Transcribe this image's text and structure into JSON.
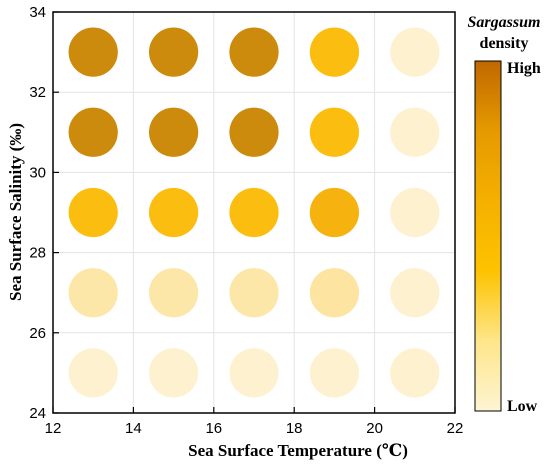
{
  "chart_data": {
    "type": "scatter",
    "xlabel": "Sea Surface Temperature (℃)",
    "ylabel": "Sea Surface Salinity (‰)",
    "xlim": [
      12,
      22
    ],
    "ylim": [
      24,
      34
    ],
    "xticks": [
      "12",
      "14",
      "16",
      "18",
      "20",
      "22"
    ],
    "yticks": [
      "24",
      "26",
      "28",
      "30",
      "32",
      "34"
    ],
    "grid": true,
    "legend": {
      "title_italic": "Sargassum",
      "title_rest": "density",
      "high_label": "High",
      "low_label": "Low",
      "placement": "right",
      "gradient_colors": [
        "#fdf4d3",
        "#fee68a",
        "#fdc300",
        "#f5b000",
        "#e59a00",
        "#c06800"
      ]
    },
    "points": [
      {
        "x": 13,
        "y": 33,
        "level": "high-mid",
        "color": "#cc8b0d"
      },
      {
        "x": 15,
        "y": 33,
        "level": "high-mid",
        "color": "#cc8b0d"
      },
      {
        "x": 17,
        "y": 33,
        "level": "high-mid",
        "color": "#cc8b0d"
      },
      {
        "x": 19,
        "y": 33,
        "level": "medium",
        "color": "#fbbe10"
      },
      {
        "x": 21,
        "y": 33,
        "level": "low",
        "color": "#fdf1d0"
      },
      {
        "x": 13,
        "y": 31,
        "level": "high-mid",
        "color": "#cc8b0d"
      },
      {
        "x": 15,
        "y": 31,
        "level": "high-mid",
        "color": "#cc8b0d"
      },
      {
        "x": 17,
        "y": 31,
        "level": "high-mid",
        "color": "#cc8b0d"
      },
      {
        "x": 19,
        "y": 31,
        "level": "medium",
        "color": "#fbbe10"
      },
      {
        "x": 21,
        "y": 31,
        "level": "low",
        "color": "#fdf1d0"
      },
      {
        "x": 13,
        "y": 29,
        "level": "medium",
        "color": "#fbbe10"
      },
      {
        "x": 15,
        "y": 29,
        "level": "medium",
        "color": "#fbbe10"
      },
      {
        "x": 17,
        "y": 29,
        "level": "medium",
        "color": "#fbbe10"
      },
      {
        "x": 19,
        "y": 29,
        "level": "medium-dark",
        "color": "#f6b20e"
      },
      {
        "x": 21,
        "y": 29,
        "level": "low",
        "color": "#fdf1d0"
      },
      {
        "x": 13,
        "y": 27,
        "level": "low-mid",
        "color": "#fde7a8"
      },
      {
        "x": 15,
        "y": 27,
        "level": "low-mid",
        "color": "#fde7a8"
      },
      {
        "x": 17,
        "y": 27,
        "level": "low-mid",
        "color": "#fde7a8"
      },
      {
        "x": 19,
        "y": 27,
        "level": "low-mid",
        "color": "#fde4a0"
      },
      {
        "x": 21,
        "y": 27,
        "level": "low",
        "color": "#fdf1d0"
      },
      {
        "x": 13,
        "y": 25,
        "level": "low",
        "color": "#fdf1d0"
      },
      {
        "x": 15,
        "y": 25,
        "level": "low",
        "color": "#fdf1d0"
      },
      {
        "x": 17,
        "y": 25,
        "level": "low",
        "color": "#fdf1d0"
      },
      {
        "x": 19,
        "y": 25,
        "level": "low",
        "color": "#fdf1d0"
      },
      {
        "x": 21,
        "y": 25,
        "level": "low",
        "color": "#fdf1d0"
      }
    ]
  }
}
